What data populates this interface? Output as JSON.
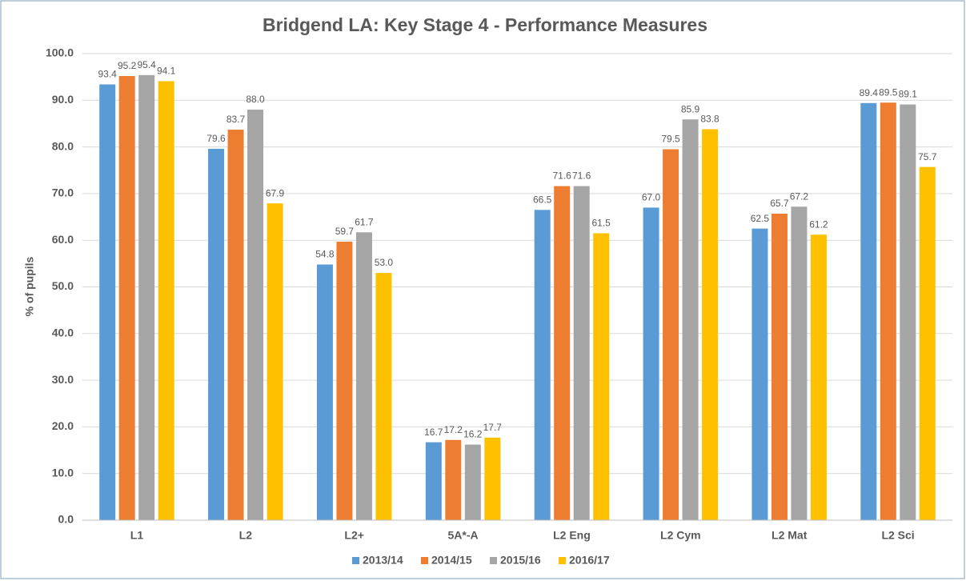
{
  "chart_data": {
    "type": "bar",
    "title": "Bridgend LA: Key Stage 4 - Performance Measures",
    "y_label": "% of pupils",
    "categories": [
      "L1",
      "L2",
      "L2+",
      "5A*-A",
      "L2 Eng",
      "L2 Cym",
      "L2 Mat",
      "L2 Sci"
    ],
    "series": [
      {
        "name": "2013/14",
        "color": "#5b9bd5",
        "values": [
          93.4,
          79.6,
          54.8,
          16.7,
          66.5,
          67.0,
          62.5,
          89.4
        ],
        "value_labels": [
          "93.4",
          "79.6",
          "54.8",
          "16.7",
          "66.5",
          "67.0",
          "62.5",
          "89.4"
        ]
      },
      {
        "name": "2014/15",
        "color": "#ed7d31",
        "values": [
          95.2,
          83.7,
          59.7,
          17.2,
          71.6,
          79.5,
          65.7,
          89.5
        ],
        "value_labels": [
          "95.2",
          "83.7",
          "59.7",
          "17.2",
          "71.6",
          "79.5",
          "65.7",
          "89.5"
        ]
      },
      {
        "name": "2015/16",
        "color": "#a5a5a5",
        "values": [
          95.4,
          88.0,
          61.7,
          16.2,
          71.6,
          85.9,
          67.2,
          89.1
        ],
        "value_labels": [
          "95.4",
          "88.0",
          "61.7",
          "16.2",
          "71.6",
          "85.9",
          "67.2",
          "89.1"
        ]
      },
      {
        "name": "2016/17",
        "color": "#ffc000",
        "values": [
          94.1,
          67.9,
          53.0,
          17.7,
          61.5,
          83.8,
          61.2,
          75.7
        ],
        "value_labels": [
          "94.1",
          "67.9",
          "53.0",
          "17.7",
          "61.5",
          "83.8",
          "61.2",
          "75.7"
        ]
      }
    ],
    "ylim": [
      0,
      100
    ],
    "yticks": [
      {
        "value": 0,
        "label": "0.0"
      },
      {
        "value": 10,
        "label": "10.0"
      },
      {
        "value": 20,
        "label": "20.0"
      },
      {
        "value": 30,
        "label": "30.0"
      },
      {
        "value": 40,
        "label": "40.0"
      },
      {
        "value": 50,
        "label": "50.0"
      },
      {
        "value": 60,
        "label": "60.0"
      },
      {
        "value": 70,
        "label": "70.0"
      },
      {
        "value": 80,
        "label": "80.0"
      },
      {
        "value": 90,
        "label": "90.0"
      },
      {
        "value": 100,
        "label": "100.0"
      }
    ],
    "grid": true,
    "legend": "bottom"
  }
}
